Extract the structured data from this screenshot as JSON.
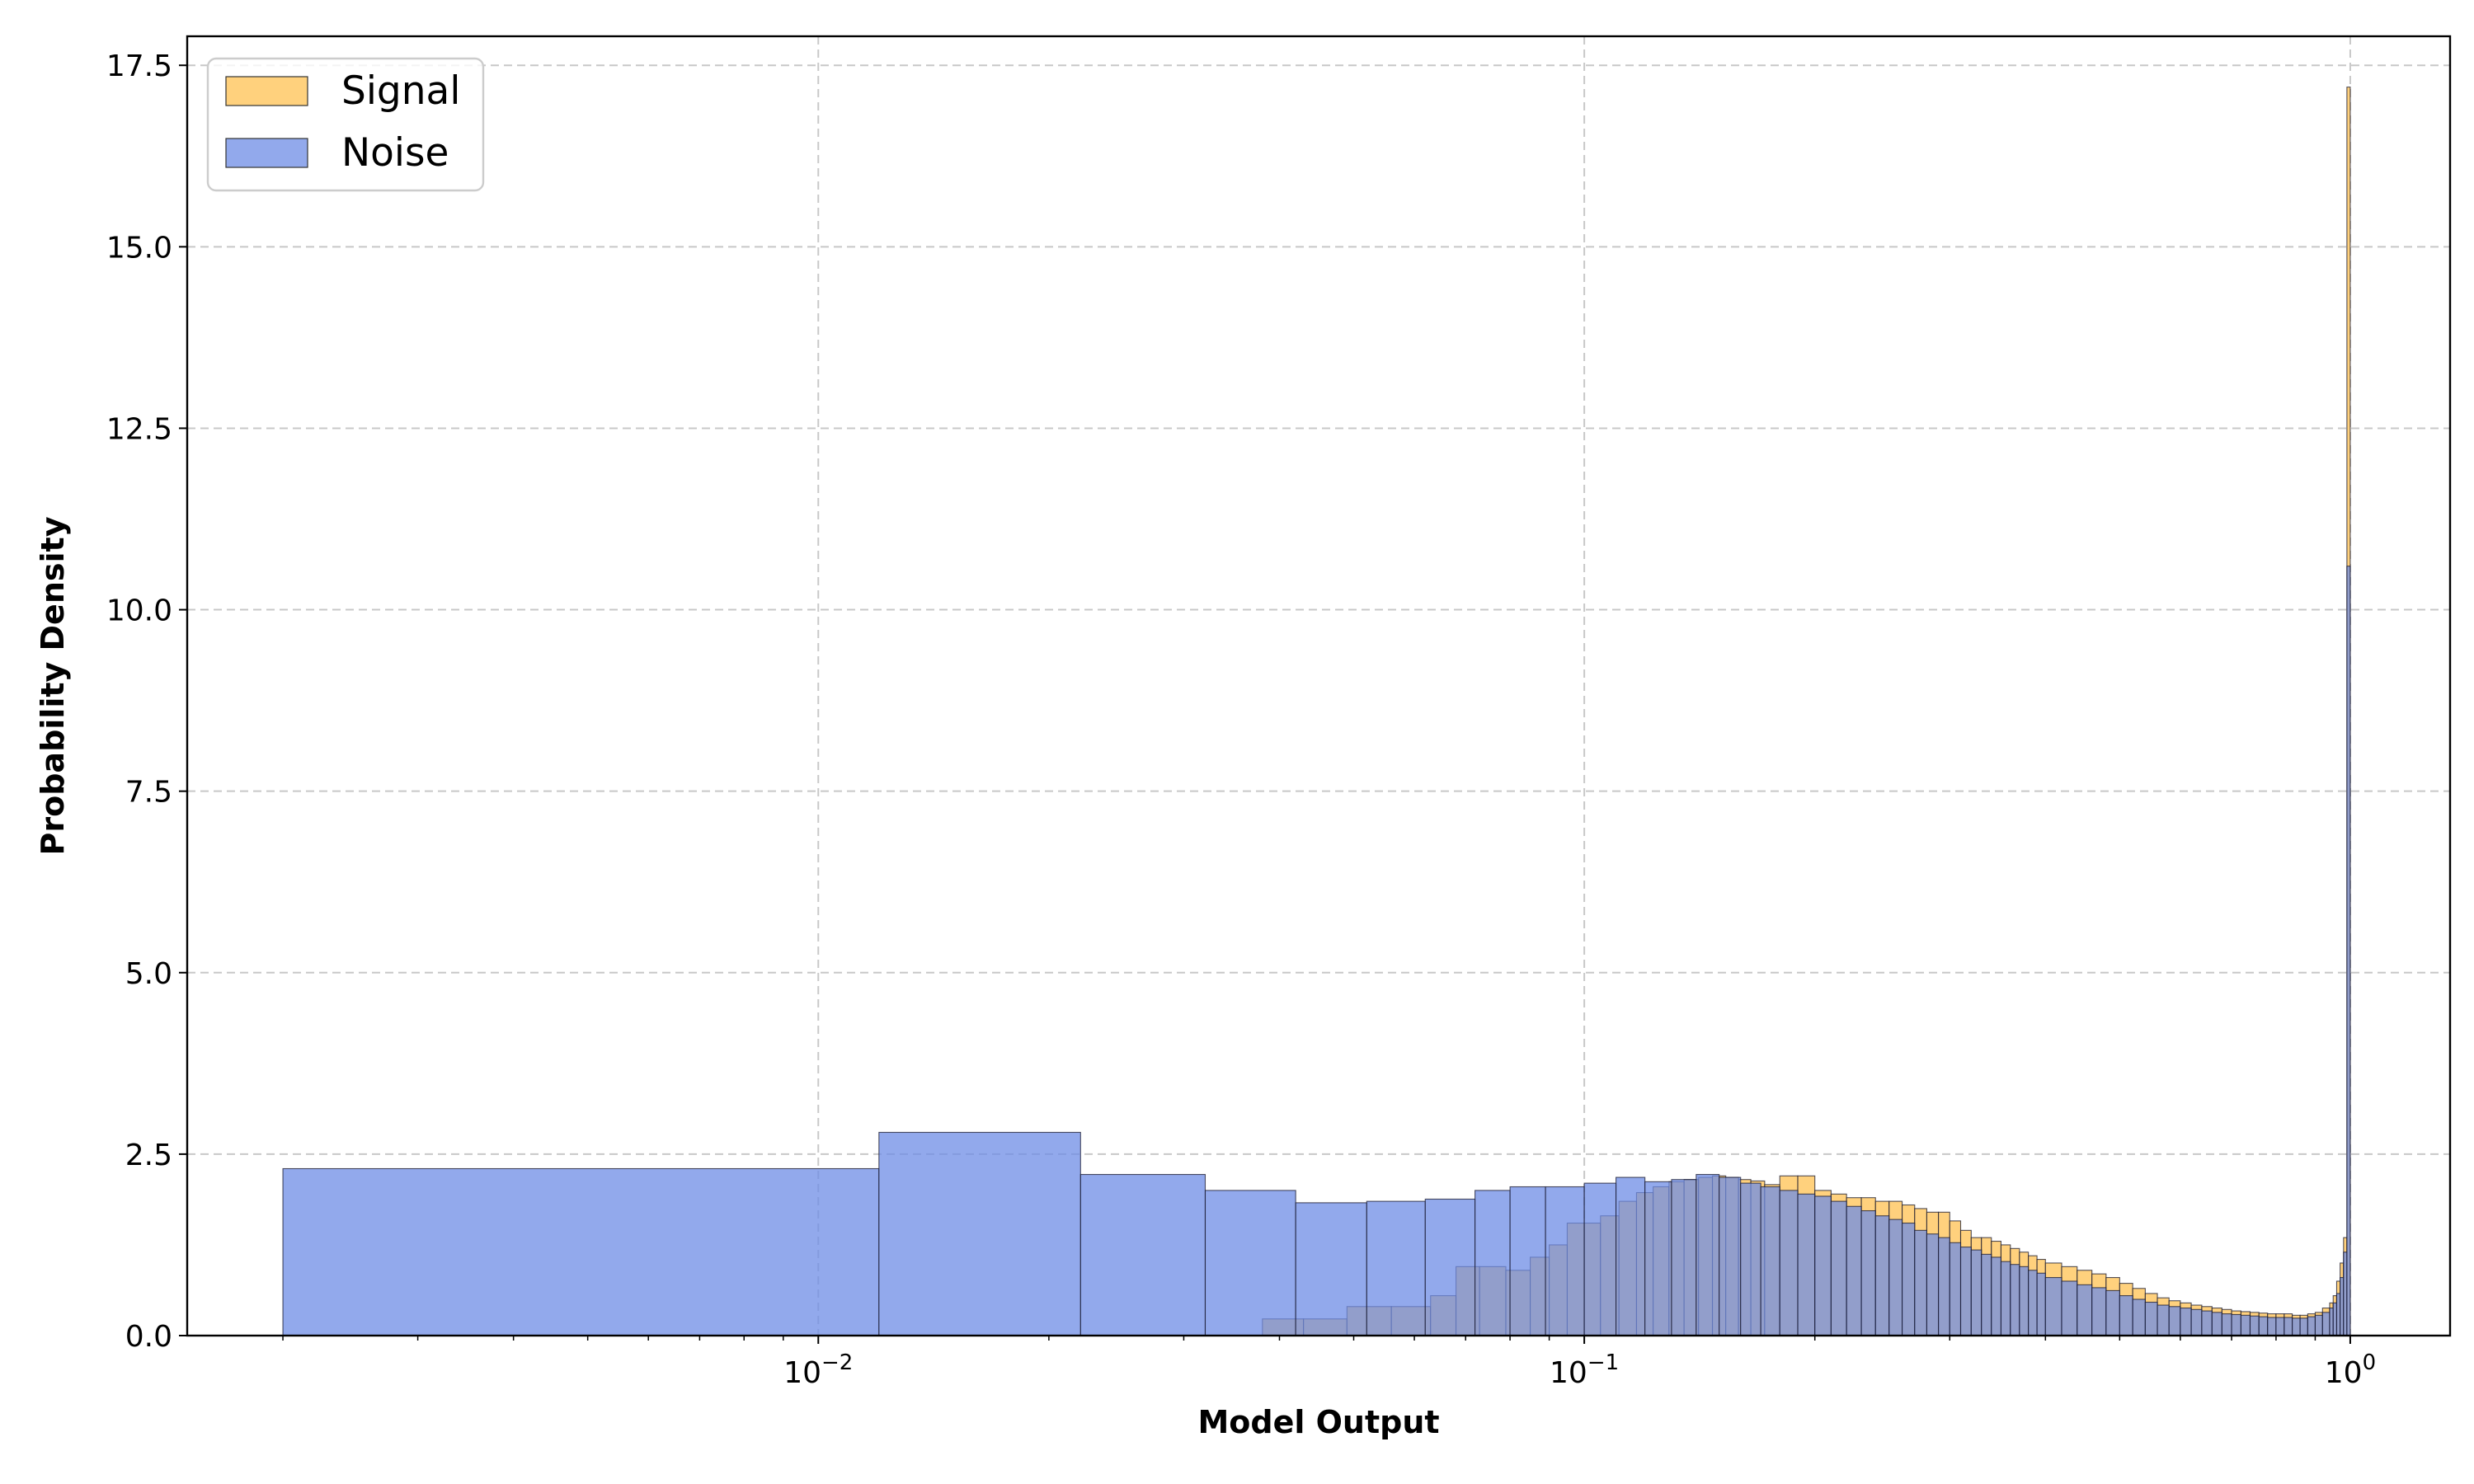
{
  "chart_data": {
    "type": "histogram",
    "xlabel": "Model Output",
    "ylabel": "Probability Density",
    "xscale": "log",
    "xlim": [
      0.0015,
      1.35
    ],
    "ylim": [
      0,
      17.9
    ],
    "grid": true,
    "legend_placement": "top-left",
    "xticks": [
      {
        "value": 0.01,
        "base": "10",
        "exp": "−2"
      },
      {
        "value": 0.1,
        "base": "10",
        "exp": "−1"
      },
      {
        "value": 1,
        "base": "10",
        "exp": "0"
      }
    ],
    "yticks": [
      {
        "value": 0,
        "label": "0.0"
      },
      {
        "value": 2.5,
        "label": "2.5"
      },
      {
        "value": 5,
        "label": "5.0"
      },
      {
        "value": 7.5,
        "label": "7.5"
      },
      {
        "value": 10,
        "label": "10.0"
      },
      {
        "value": 12.5,
        "label": "12.5"
      },
      {
        "value": 15,
        "label": "15.0"
      },
      {
        "value": 17.5,
        "label": "17.5"
      }
    ],
    "series": [
      {
        "name": "Signal",
        "color": "#ffc966",
        "bins": [
          [
            0.038,
            0.043,
            0.23
          ],
          [
            0.043,
            0.049,
            0.23
          ],
          [
            0.049,
            0.056,
            0.4
          ],
          [
            0.056,
            0.063,
            0.4
          ],
          [
            0.063,
            0.068,
            0.55
          ],
          [
            0.068,
            0.073,
            0.95
          ],
          [
            0.073,
            0.079,
            0.95
          ],
          [
            0.079,
            0.085,
            0.9
          ],
          [
            0.085,
            0.09,
            1.08
          ],
          [
            0.09,
            0.095,
            1.25
          ],
          [
            0.095,
            0.1,
            1.55
          ],
          [
            0.1,
            0.105,
            1.55
          ],
          [
            0.105,
            0.111,
            1.65
          ],
          [
            0.111,
            0.117,
            1.85
          ],
          [
            0.117,
            0.123,
            1.97
          ],
          [
            0.123,
            0.129,
            2.05
          ],
          [
            0.129,
            0.135,
            2.12
          ],
          [
            0.135,
            0.141,
            2.15
          ],
          [
            0.141,
            0.147,
            2.18
          ],
          [
            0.147,
            0.153,
            2.2
          ],
          [
            0.153,
            0.159,
            2.18
          ],
          [
            0.159,
            0.165,
            2.15
          ],
          [
            0.165,
            0.172,
            2.13
          ],
          [
            0.172,
            0.18,
            2.08
          ],
          [
            0.18,
            0.19,
            2.2
          ],
          [
            0.19,
            0.2,
            2.2
          ],
          [
            0.2,
            0.21,
            2.0
          ],
          [
            0.21,
            0.22,
            1.95
          ],
          [
            0.22,
            0.23,
            1.9
          ],
          [
            0.23,
            0.24,
            1.9
          ],
          [
            0.24,
            0.25,
            1.85
          ],
          [
            0.25,
            0.26,
            1.85
          ],
          [
            0.26,
            0.27,
            1.8
          ],
          [
            0.27,
            0.28,
            1.75
          ],
          [
            0.28,
            0.29,
            1.7
          ],
          [
            0.29,
            0.3,
            1.7
          ],
          [
            0.3,
            0.31,
            1.58
          ],
          [
            0.31,
            0.32,
            1.45
          ],
          [
            0.32,
            0.33,
            1.35
          ],
          [
            0.33,
            0.34,
            1.35
          ],
          [
            0.34,
            0.35,
            1.3
          ],
          [
            0.35,
            0.36,
            1.25
          ],
          [
            0.36,
            0.37,
            1.2
          ],
          [
            0.37,
            0.38,
            1.15
          ],
          [
            0.38,
            0.39,
            1.1
          ],
          [
            0.39,
            0.4,
            1.05
          ],
          [
            0.4,
            0.42,
            1.0
          ],
          [
            0.42,
            0.44,
            0.95
          ],
          [
            0.44,
            0.46,
            0.9
          ],
          [
            0.46,
            0.48,
            0.85
          ],
          [
            0.48,
            0.5,
            0.8
          ],
          [
            0.5,
            0.52,
            0.72
          ],
          [
            0.52,
            0.54,
            0.65
          ],
          [
            0.54,
            0.56,
            0.58
          ],
          [
            0.56,
            0.58,
            0.52
          ],
          [
            0.58,
            0.6,
            0.48
          ],
          [
            0.6,
            0.62,
            0.45
          ],
          [
            0.62,
            0.64,
            0.42
          ],
          [
            0.64,
            0.66,
            0.4
          ],
          [
            0.66,
            0.68,
            0.38
          ],
          [
            0.68,
            0.7,
            0.36
          ],
          [
            0.7,
            0.72,
            0.34
          ],
          [
            0.72,
            0.74,
            0.33
          ],
          [
            0.74,
            0.76,
            0.32
          ],
          [
            0.76,
            0.78,
            0.31
          ],
          [
            0.78,
            0.8,
            0.3
          ],
          [
            0.8,
            0.82,
            0.3
          ],
          [
            0.82,
            0.84,
            0.3
          ],
          [
            0.84,
            0.86,
            0.28
          ],
          [
            0.86,
            0.88,
            0.28
          ],
          [
            0.88,
            0.9,
            0.3
          ],
          [
            0.9,
            0.92,
            0.32
          ],
          [
            0.92,
            0.94,
            0.38
          ],
          [
            0.94,
            0.95,
            0.45
          ],
          [
            0.95,
            0.96,
            0.55
          ],
          [
            0.96,
            0.97,
            0.75
          ],
          [
            0.97,
            0.98,
            1.0
          ],
          [
            0.98,
            0.99,
            1.35
          ],
          [
            0.99,
            1.0,
            17.2
          ]
        ]
      },
      {
        "name": "Noise",
        "color": "#6e8ce6",
        "bins": [
          [
            0.002,
            0.012,
            2.3
          ],
          [
            0.012,
            0.022,
            2.8
          ],
          [
            0.022,
            0.032,
            2.22
          ],
          [
            0.032,
            0.042,
            2.0
          ],
          [
            0.042,
            0.052,
            1.83
          ],
          [
            0.052,
            0.062,
            1.85
          ],
          [
            0.062,
            0.072,
            1.88
          ],
          [
            0.072,
            0.08,
            2.0
          ],
          [
            0.08,
            0.089,
            2.05
          ],
          [
            0.089,
            0.1,
            2.05
          ],
          [
            0.1,
            0.11,
            2.1
          ],
          [
            0.11,
            0.12,
            2.18
          ],
          [
            0.12,
            0.13,
            2.12
          ],
          [
            0.13,
            0.14,
            2.15
          ],
          [
            0.14,
            0.15,
            2.22
          ],
          [
            0.15,
            0.16,
            2.18
          ],
          [
            0.16,
            0.17,
            2.1
          ],
          [
            0.17,
            0.18,
            2.05
          ],
          [
            0.18,
            0.19,
            2.0
          ],
          [
            0.19,
            0.2,
            1.95
          ],
          [
            0.2,
            0.21,
            1.92
          ],
          [
            0.21,
            0.22,
            1.85
          ],
          [
            0.22,
            0.23,
            1.78
          ],
          [
            0.23,
            0.24,
            1.72
          ],
          [
            0.24,
            0.25,
            1.65
          ],
          [
            0.25,
            0.26,
            1.6
          ],
          [
            0.26,
            0.27,
            1.55
          ],
          [
            0.27,
            0.28,
            1.45
          ],
          [
            0.28,
            0.29,
            1.4
          ],
          [
            0.29,
            0.3,
            1.35
          ],
          [
            0.3,
            0.31,
            1.28
          ],
          [
            0.31,
            0.32,
            1.22
          ],
          [
            0.32,
            0.33,
            1.18
          ],
          [
            0.33,
            0.34,
            1.12
          ],
          [
            0.34,
            0.35,
            1.08
          ],
          [
            0.35,
            0.36,
            1.02
          ],
          [
            0.36,
            0.37,
            0.98
          ],
          [
            0.37,
            0.38,
            0.95
          ],
          [
            0.38,
            0.39,
            0.9
          ],
          [
            0.39,
            0.4,
            0.86
          ],
          [
            0.4,
            0.42,
            0.8
          ],
          [
            0.42,
            0.44,
            0.75
          ],
          [
            0.44,
            0.46,
            0.7
          ],
          [
            0.46,
            0.48,
            0.66
          ],
          [
            0.48,
            0.5,
            0.62
          ],
          [
            0.5,
            0.52,
            0.55
          ],
          [
            0.52,
            0.54,
            0.5
          ],
          [
            0.54,
            0.56,
            0.46
          ],
          [
            0.56,
            0.58,
            0.42
          ],
          [
            0.58,
            0.6,
            0.4
          ],
          [
            0.6,
            0.62,
            0.38
          ],
          [
            0.62,
            0.64,
            0.36
          ],
          [
            0.64,
            0.66,
            0.34
          ],
          [
            0.66,
            0.68,
            0.32
          ],
          [
            0.68,
            0.7,
            0.3
          ],
          [
            0.7,
            0.72,
            0.29
          ],
          [
            0.72,
            0.74,
            0.28
          ],
          [
            0.74,
            0.76,
            0.27
          ],
          [
            0.76,
            0.78,
            0.26
          ],
          [
            0.78,
            0.8,
            0.25
          ],
          [
            0.8,
            0.82,
            0.25
          ],
          [
            0.82,
            0.84,
            0.25
          ],
          [
            0.84,
            0.86,
            0.24
          ],
          [
            0.86,
            0.88,
            0.24
          ],
          [
            0.88,
            0.9,
            0.26
          ],
          [
            0.9,
            0.92,
            0.28
          ],
          [
            0.92,
            0.94,
            0.32
          ],
          [
            0.94,
            0.95,
            0.38
          ],
          [
            0.95,
            0.96,
            0.45
          ],
          [
            0.96,
            0.97,
            0.58
          ],
          [
            0.97,
            0.98,
            0.8
          ],
          [
            0.98,
            0.99,
            1.15
          ],
          [
            0.99,
            1.0,
            10.6
          ]
        ]
      }
    ]
  }
}
